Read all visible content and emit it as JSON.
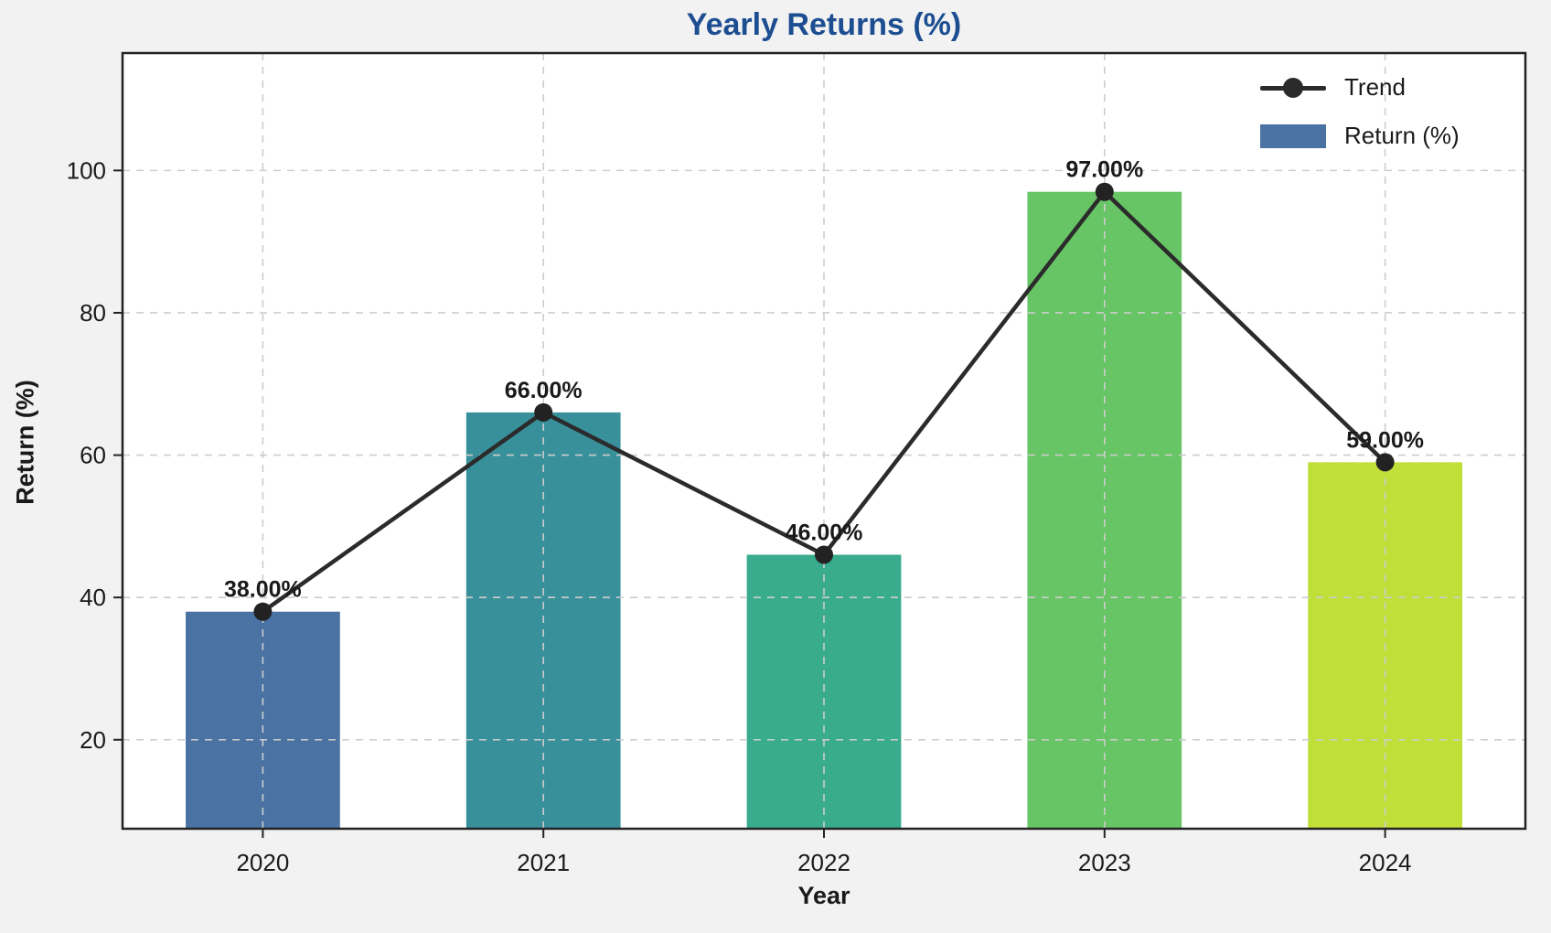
{
  "chart_data": {
    "type": "bar",
    "title": "Yearly Returns (%)",
    "xlabel": "Year",
    "ylabel": "Return (%)",
    "categories": [
      "2020",
      "2021",
      "2022",
      "2023",
      "2024"
    ],
    "series": [
      {
        "name": "Return (%)",
        "type": "bar",
        "values": [
          38,
          66,
          46,
          97,
          59
        ],
        "bar_colors": [
          "#4a72a3",
          "#38909b",
          "#38ac8c",
          "#67c565",
          "#c1df39"
        ]
      },
      {
        "name": "Trend",
        "type": "line",
        "values": [
          38,
          66,
          46,
          97,
          59
        ],
        "color": "#2b2b2b"
      }
    ],
    "data_labels": [
      "38.00%",
      "66.00%",
      "46.00%",
      "97.00%",
      "59.00%"
    ],
    "yticks": [
      20,
      40,
      60,
      80,
      100
    ],
    "ylim": [
      7.5,
      116.5
    ],
    "grid": true,
    "grid_style": "dashed",
    "legend_position": "upper right",
    "legend": [
      {
        "label": "Trend",
        "swatch": "line-marker",
        "color": "#2b2b2b"
      },
      {
        "label": "Return (%)",
        "swatch": "rect",
        "color": "#4a72a3"
      }
    ],
    "colors": {
      "title": "#1c4e91",
      "figure_background": "#f2f2f2",
      "plot_background": "#ffffff",
      "grid": "#cdcdcd",
      "spine": "#222222",
      "text": "#1a1a1a",
      "trend_line": "#2b2b2b",
      "trend_marker": "#222222"
    }
  }
}
